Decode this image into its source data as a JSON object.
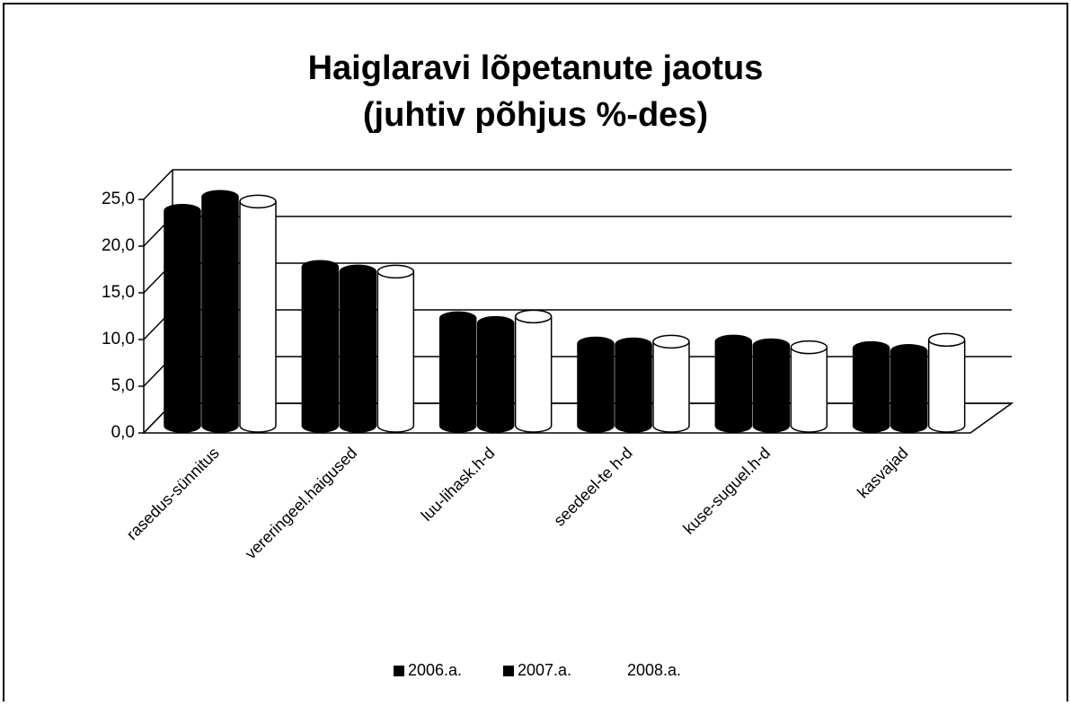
{
  "chart_data": {
    "type": "bar3d",
    "title": [
      "Haiglaravi lõpetanute jaotus",
      "(juhtiv põhjus %-des)"
    ],
    "categories": [
      "rasedus-sünnitus",
      "vereringeel.haigused",
      "luu-lihask.h-d",
      "seedeel-te h-d",
      "kuse-suguel.h-d",
      "kasvajad"
    ],
    "series": [
      {
        "name": "2006.a.",
        "color": "#000000",
        "values": [
          23.0,
          17.0,
          11.5,
          8.8,
          9.0,
          8.3
        ]
      },
      {
        "name": "2007.a.",
        "color": "#000000",
        "values": [
          24.5,
          16.5,
          11.0,
          8.7,
          8.6,
          8.0
        ]
      },
      {
        "name": "2008.a.",
        "color": "#ffffff",
        "values": [
          24.0,
          16.5,
          11.7,
          9.0,
          8.4,
          9.2
        ]
      }
    ],
    "ylim": [
      0,
      25
    ],
    "yticks": [
      {
        "value": 0,
        "label": "0,0"
      },
      {
        "value": 5,
        "label": "5,0"
      },
      {
        "value": 10,
        "label": "10,0"
      },
      {
        "value": 15,
        "label": "15,0"
      },
      {
        "value": 20,
        "label": "20,0"
      },
      {
        "value": 25,
        "label": "25,0"
      }
    ],
    "grid": true,
    "legend": "bottom"
  }
}
